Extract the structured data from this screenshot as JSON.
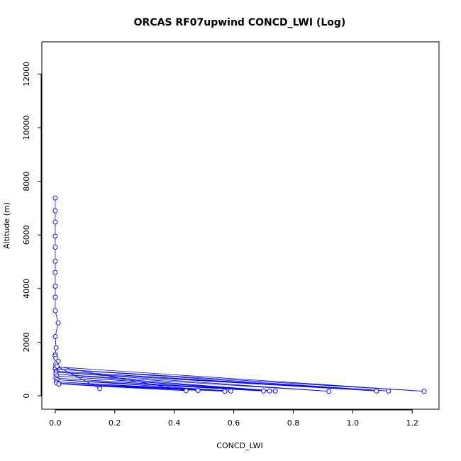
{
  "chart_data": {
    "type": "line",
    "title": "ORCAS RF07upwind CONCD_LWI (Log)",
    "xlabel": "CONCD_LWI",
    "ylabel": "Altitude (m)",
    "xlim": [
      -0.045,
      1.29
    ],
    "ylim": [
      -500,
      13200
    ],
    "x_ticks": [
      0.0,
      0.2,
      0.4,
      0.6,
      0.8,
      1.0,
      1.2
    ],
    "x_tick_labels": [
      "0.0",
      "0.2",
      "0.4",
      "0.6",
      "0.8",
      "1.0",
      "1.2"
    ],
    "y_ticks": [
      0,
      2000,
      4000,
      6000,
      8000,
      10000,
      12000
    ],
    "y_tick_labels": [
      "0",
      "2000",
      "4000",
      "6000",
      "8000",
      "10000",
      "12000"
    ],
    "grid": false,
    "series": [
      {
        "color": "#0000ff",
        "marker": "open-circle",
        "points": [
          [
            0.0,
            7380
          ],
          [
            0.0,
            6900
          ],
          [
            0.0,
            6480
          ],
          [
            0.0,
            5950
          ],
          [
            0.0,
            5540
          ],
          [
            0.0,
            5020
          ],
          [
            0.0,
            4600
          ],
          [
            0.0,
            4090
          ],
          [
            0.0,
            3680
          ],
          [
            0.0,
            3170
          ],
          [
            0.01,
            2720
          ],
          [
            0.0,
            2210
          ],
          [
            0.003,
            1790
          ],
          [
            0.0,
            1540
          ],
          [
            0.0,
            1490
          ],
          [
            0.002,
            1400
          ],
          [
            0.01,
            1290
          ],
          [
            0.002,
            1180
          ],
          [
            0.002,
            1080
          ],
          [
            1.24,
            170
          ],
          [
            0.0,
            1000
          ],
          [
            1.12,
            180
          ],
          [
            0.003,
            920
          ],
          [
            1.08,
            180
          ],
          [
            0.003,
            880
          ],
          [
            0.92,
            170
          ],
          [
            0.002,
            810
          ],
          [
            0.74,
            180
          ],
          [
            0.005,
            740
          ],
          [
            0.72,
            180
          ],
          [
            0.002,
            660
          ],
          [
            0.7,
            180
          ],
          [
            0.006,
            600
          ],
          [
            0.59,
            180
          ],
          [
            0.004,
            520
          ],
          [
            0.57,
            170
          ],
          [
            0.004,
            480
          ],
          [
            0.48,
            200
          ],
          [
            0.012,
            440
          ],
          [
            0.44,
            190
          ],
          [
            0.006,
            1100
          ],
          [
            0.15,
            270
          ]
        ]
      }
    ]
  }
}
